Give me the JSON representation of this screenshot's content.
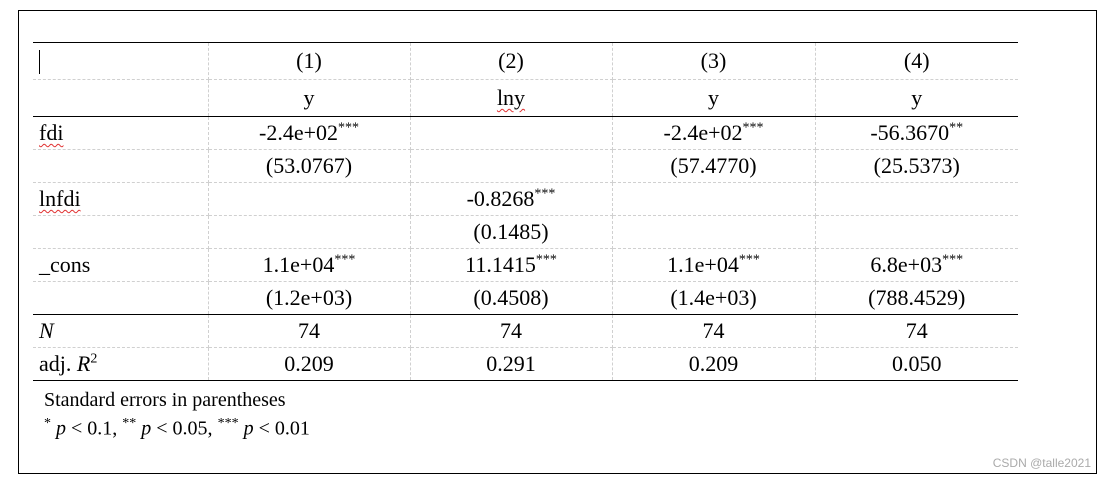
{
  "table": {
    "columns": [
      "(1)",
      "(2)",
      "(3)",
      "(4)"
    ],
    "depvars": [
      "y",
      "lny",
      "y",
      "y"
    ],
    "rows": [
      {
        "label": "fdi",
        "cells": [
          {
            "value": "-2.4e+02",
            "stars": "***"
          },
          null,
          {
            "value": "-2.4e+02",
            "stars": "***"
          },
          {
            "value": "-56.3670",
            "stars": "**"
          }
        ]
      },
      {
        "cells": [
          {
            "value": "(53.0767)"
          },
          null,
          {
            "value": "(57.4770)"
          },
          {
            "value": "(25.5373)"
          }
        ]
      },
      {
        "label": "lnfdi",
        "cells": [
          null,
          {
            "value": "-0.8268",
            "stars": "***"
          },
          null,
          null
        ]
      },
      {
        "cells": [
          null,
          {
            "value": "(0.1485)"
          },
          null,
          null
        ]
      },
      {
        "label": "_cons",
        "cells": [
          {
            "value": "1.1e+04",
            "stars": "***"
          },
          {
            "value": "11.1415",
            "stars": "***"
          },
          {
            "value": "1.1e+04",
            "stars": "***"
          },
          {
            "value": "6.8e+03",
            "stars": "***"
          }
        ]
      },
      {
        "cells": [
          {
            "value": "(1.2e+03)"
          },
          {
            "value": "(0.4508)"
          },
          {
            "value": "(1.4e+03)"
          },
          {
            "value": "(788.4529)"
          }
        ]
      }
    ],
    "stats": [
      {
        "var": "N",
        "values": [
          "74",
          "74",
          "74",
          "74"
        ]
      },
      {
        "label": "adj. ",
        "var": "R",
        "sup": "2",
        "values": [
          "0.209",
          "0.291",
          "0.209",
          "0.050"
        ]
      }
    ]
  },
  "notes": {
    "line1": "Standard errors in parentheses",
    "significance": [
      {
        "stars": "*",
        "var": "p",
        "text": " < 0.1, "
      },
      {
        "stars": "**",
        "var": "p",
        "text": " < 0.05, "
      },
      {
        "stars": "***",
        "var": "p",
        "text": " < 0.01"
      }
    ]
  },
  "watermark": "CSDN @talle2021"
}
